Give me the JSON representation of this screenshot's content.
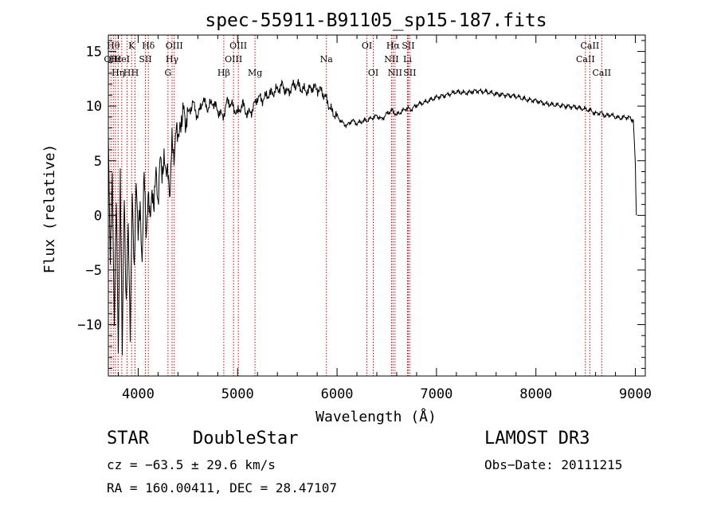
{
  "chart_data": {
    "type": "line",
    "title": "spec-55911-B91105_sp15-187.fits",
    "xlabel": "Wavelength (Å)",
    "ylabel": "Flux (relative)",
    "xlim": [
      3700,
      9100
    ],
    "ylim": [
      -14.7,
      16.5
    ],
    "x_ticks": [
      4000,
      5000,
      6000,
      7000,
      8000,
      9000
    ],
    "x_tick_labels": [
      "4000",
      "5000",
      "6000",
      "7000",
      "8000",
      "9000"
    ],
    "y_ticks": [
      -10,
      -5,
      0,
      5,
      10,
      15
    ],
    "y_tick_labels": [
      "−10",
      "−5",
      "0",
      "5",
      "10",
      "15"
    ],
    "series": [
      {
        "name": "flux",
        "x": [
          3700,
          3720,
          3740,
          3760,
          3780,
          3800,
          3820,
          3840,
          3860,
          3880,
          3900,
          3920,
          3940,
          3960,
          3980,
          4000,
          4020,
          4040,
          4060,
          4080,
          4100,
          4120,
          4140,
          4160,
          4180,
          4200,
          4220,
          4240,
          4260,
          4280,
          4300,
          4320,
          4340,
          4360,
          4380,
          4400,
          4420,
          4440,
          4460,
          4480,
          4500,
          4550,
          4600,
          4650,
          4700,
          4750,
          4800,
          4850,
          4900,
          4950,
          5000,
          5050,
          5100,
          5150,
          5200,
          5250,
          5300,
          5350,
          5400,
          5450,
          5500,
          5550,
          5600,
          5650,
          5700,
          5750,
          5800,
          5850,
          5900,
          5950,
          6000,
          6050,
          6100,
          6150,
          6200,
          6250,
          6300,
          6350,
          6400,
          6450,
          6500,
          6550,
          6600,
          6650,
          6700,
          6750,
          6800,
          6900,
          7000,
          7100,
          7200,
          7300,
          7400,
          7500,
          7600,
          7700,
          7800,
          7900,
          8000,
          8100,
          8200,
          8300,
          8400,
          8500,
          8550,
          8600,
          8650,
          8700,
          8750,
          8800,
          8850,
          8900,
          8950,
          8980,
          9000,
          9010
        ],
        "y": [
          8.2,
          -5.0,
          3.5,
          -9.5,
          1.0,
          -12.5,
          4.0,
          -13.0,
          2.5,
          -8.5,
          -1.5,
          -10.0,
          1.5,
          -5.5,
          4.0,
          -2.5,
          1.0,
          -4.0,
          3.5,
          -1.5,
          2.0,
          -1.0,
          3.0,
          0.5,
          4.0,
          1.5,
          5.0,
          3.5,
          6.0,
          3.0,
          4.5,
          2.0,
          6.5,
          5.5,
          8.0,
          6.5,
          9.0,
          8.0,
          10.0,
          8.5,
          9.2,
          10.3,
          9.0,
          10.6,
          9.8,
          10.4,
          9.6,
          9.0,
          10.5,
          10.0,
          9.3,
          10.2,
          9.2,
          9.7,
          10.8,
          10.6,
          11.0,
          11.2,
          11.5,
          11.9,
          11.2,
          11.8,
          12.0,
          11.5,
          11.4,
          11.7,
          11.6,
          11.3,
          10.5,
          9.4,
          9.1,
          8.5,
          8.2,
          8.7,
          8.4,
          8.6,
          8.7,
          8.9,
          9.1,
          8.8,
          9.3,
          9.6,
          9.2,
          9.5,
          9.8,
          9.7,
          10.1,
          10.4,
          10.8,
          11.0,
          11.3,
          11.2,
          11.4,
          11.3,
          11.1,
          11.0,
          10.9,
          10.6,
          10.5,
          10.2,
          10.1,
          10.0,
          9.9,
          9.7,
          9.6,
          9.3,
          9.4,
          9.1,
          9.2,
          9.0,
          8.9,
          9.0,
          8.9,
          8.7,
          4.5,
          0.0
        ]
      }
    ],
    "line_markers": [
      {
        "wl": 3726,
        "label": "OII",
        "row": 2
      },
      {
        "wl": 3750,
        "label": "Hθ",
        "row": 1
      },
      {
        "wl": 3771,
        "label": "Hε",
        "row": 2
      },
      {
        "wl": 3798,
        "label": "Hη",
        "row": 3
      },
      {
        "wl": 3835,
        "label": "HeI",
        "row": 2
      },
      {
        "wl": 3889,
        "label": "H",
        "row": 3
      },
      {
        "wl": 3934,
        "label": "K",
        "row": 1
      },
      {
        "wl": 3968,
        "label": "H",
        "row": 3
      },
      {
        "wl": 4072,
        "label": "SII",
        "row": 2
      },
      {
        "wl": 4102,
        "label": "Hδ",
        "row": 1
      },
      {
        "wl": 4300,
        "label": "G",
        "row": 3
      },
      {
        "wl": 4341,
        "label": "Hγ",
        "row": 2
      },
      {
        "wl": 4363,
        "label": "OIII",
        "row": 1
      },
      {
        "wl": 4861,
        "label": "Hβ",
        "row": 3
      },
      {
        "wl": 4959,
        "label": "OIII",
        "row": 2
      },
      {
        "wl": 5007,
        "label": "OIII",
        "row": 1
      },
      {
        "wl": 5175,
        "label": "Mg",
        "row": 3
      },
      {
        "wl": 5893,
        "label": "Na",
        "row": 2
      },
      {
        "wl": 6300,
        "label": "OI",
        "row": 1
      },
      {
        "wl": 6364,
        "label": "OI",
        "row": 3
      },
      {
        "wl": 6548,
        "label": "NII",
        "row": 2
      },
      {
        "wl": 6563,
        "label": "Hα",
        "row": 1
      },
      {
        "wl": 6583,
        "label": "NII",
        "row": 3
      },
      {
        "wl": 6708,
        "label": "Li",
        "row": 2
      },
      {
        "wl": 6716,
        "label": "SII",
        "row": 1
      },
      {
        "wl": 6731,
        "label": "SII",
        "row": 3
      },
      {
        "wl": 8498,
        "label": "CaII",
        "row": 2
      },
      {
        "wl": 8542,
        "label": "CaII",
        "row": 1
      },
      {
        "wl": 8662,
        "label": "CaII",
        "row": 3
      }
    ]
  },
  "footer": {
    "class_label": "STAR",
    "subclass_label": "DoubleStar",
    "survey_label": "LAMOST DR3",
    "cz_label": "cz = −63.5 ± 29.6 km/s",
    "obsdate_label": "Obs−Date: 20111215",
    "radec_label": "RA = 160.00411, DEC =  28.47107"
  },
  "colors": {
    "line": "#000000",
    "marker": "#cc0000",
    "background": "#ffffff"
  }
}
